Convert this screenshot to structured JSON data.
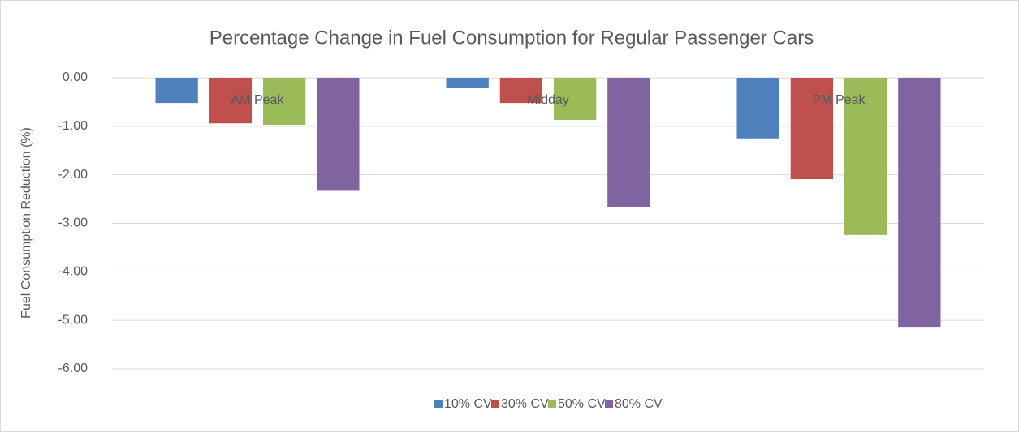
{
  "chart_data": {
    "type": "bar",
    "title": "Percentage Change in Fuel Consumption for Regular Passenger Cars",
    "ylabel": "Fuel Consumption Reduction (%)",
    "categories": [
      "AM Peak",
      "Midday",
      "PM Peak"
    ],
    "series": [
      {
        "name": "10% CV",
        "color": "#4f81bd",
        "values": [
          -0.52,
          -0.2,
          -1.25
        ]
      },
      {
        "name": "30% CV",
        "color": "#c0504d",
        "values": [
          -0.94,
          -0.52,
          -2.09
        ]
      },
      {
        "name": "50% CV",
        "color": "#9bbb59",
        "values": [
          -0.97,
          -0.87,
          -3.24
        ]
      },
      {
        "name": "80% CV",
        "color": "#8064a2",
        "values": [
          -2.33,
          -2.66,
          -5.15
        ]
      }
    ],
    "ylim": [
      -6,
      0
    ],
    "yticks": [
      {
        "value": 0,
        "label": "0.00"
      },
      {
        "value": -1,
        "label": "-1.00"
      },
      {
        "value": -2,
        "label": "-2.00"
      },
      {
        "value": -3,
        "label": "-3.00"
      },
      {
        "value": -4,
        "label": "-4.00"
      },
      {
        "value": -5,
        "label": "-5.00"
      },
      {
        "value": -6,
        "label": "-6.00"
      }
    ],
    "grid": true,
    "legend": "bottom"
  }
}
